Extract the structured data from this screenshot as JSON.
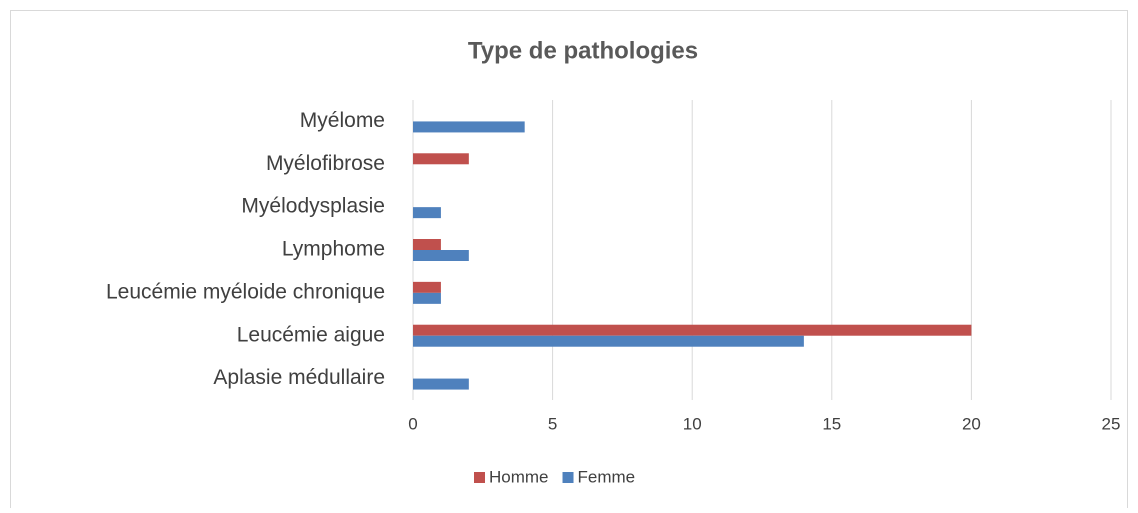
{
  "chart_data": {
    "type": "bar",
    "orientation": "horizontal",
    "title": "Type de pathologies",
    "categories": [
      "Aplasie médullaire",
      "Leucémie aigue",
      "Leucémie myéloide chronique",
      "Lymphome",
      "Myélodysplasie",
      "Myélofibrose",
      "Myélome"
    ],
    "series": [
      {
        "name": "Homme",
        "color": "#c0504d",
        "values": [
          0,
          20,
          1,
          1,
          0,
          2,
          0
        ]
      },
      {
        "name": "Femme",
        "color": "#4f81bd",
        "values": [
          2,
          14,
          1,
          2,
          1,
          0,
          4
        ]
      }
    ],
    "xlim": [
      0,
      25
    ],
    "xticks": [
      0,
      5,
      10,
      15,
      20,
      25
    ],
    "grid": true,
    "legend": "bottom"
  }
}
